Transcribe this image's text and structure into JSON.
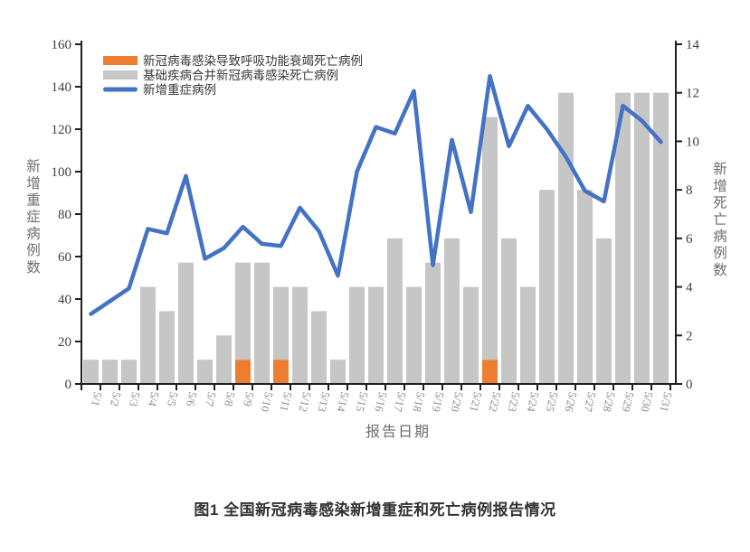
{
  "figure": {
    "caption": "图1 全国新冠病毒感染新增重症和死亡病例报告情况"
  },
  "chart_data": {
    "type": "combo-bar-line",
    "stacked_bars": true,
    "grid": false,
    "legend_position": "top-left-inside",
    "categories": [
      "5/1",
      "5/2",
      "5/3",
      "5/4",
      "5/5",
      "5/6",
      "5/7",
      "5/8",
      "5/9",
      "5/10",
      "5/11",
      "5/12",
      "5/13",
      "5/14",
      "5/15",
      "5/16",
      "5/17",
      "5/18",
      "5/19",
      "5/20",
      "5/21",
      "5/22",
      "5/23",
      "5/24",
      "5/25",
      "5/26",
      "5/27",
      "5/28",
      "5/29",
      "5/30",
      "5/31"
    ],
    "series": [
      {
        "name": "新冠病毒感染导致呼吸功能衰竭死亡病例",
        "type": "bar",
        "axis": "right",
        "color": "#ED7D31",
        "values": [
          0,
          0,
          0,
          0,
          0,
          0,
          0,
          0,
          1,
          0,
          1,
          0,
          0,
          0,
          0,
          0,
          0,
          0,
          0,
          0,
          0,
          1,
          0,
          0,
          0,
          0,
          0,
          0,
          0,
          0,
          0
        ]
      },
      {
        "name": "基础疾病合并新冠病毒感染死亡病例",
        "type": "bar",
        "axis": "right",
        "color": "#C6C6C6",
        "values": [
          1,
          1,
          1,
          4,
          3,
          5,
          1,
          2,
          4,
          5,
          3,
          4,
          3,
          1,
          4,
          4,
          6,
          4,
          5,
          6,
          4,
          10,
          6,
          4,
          8,
          12,
          8,
          6,
          12,
          12,
          12
        ]
      },
      {
        "name": "新增重症病例",
        "type": "line",
        "axis": "left",
        "color": "#4472C4",
        "values": [
          33,
          39,
          45,
          73,
          71,
          98,
          59,
          64,
          74,
          66,
          65,
          83,
          72,
          51,
          100,
          121,
          118,
          138,
          56,
          115,
          81,
          145,
          112,
          131,
          120,
          107,
          91,
          86,
          131,
          124,
          114
        ]
      }
    ],
    "left_axis": {
      "label": "新增重症病例数",
      "min": 0,
      "max": 160,
      "step": 20
    },
    "right_axis": {
      "label": "新增死亡病例数",
      "min": 0,
      "max": 14,
      "step": 2
    },
    "x_axis": {
      "label": "报告日期"
    }
  },
  "colors": {
    "axis_line": "#1f1f1f",
    "tick_label": "#404040",
    "date_label": "#8a8a8a",
    "axis_title": "#6e6e6e",
    "legend_text": "#383838",
    "caption_text": "#333333"
  }
}
